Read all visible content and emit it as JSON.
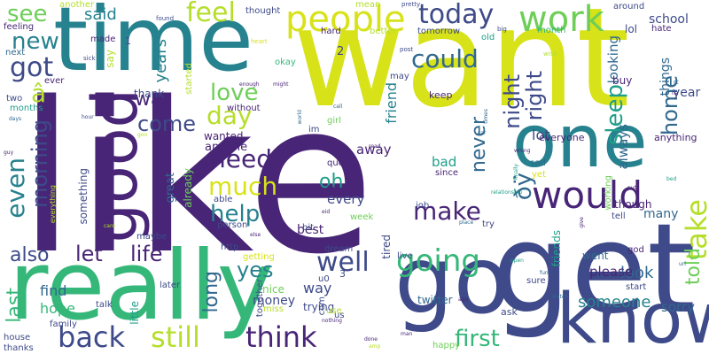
{
  "title": "Word cloud",
  "palette": {
    "dark_purple": "#482576",
    "indigo": "#3e4a89",
    "blue": "#31688e",
    "teal": "#26828e",
    "green_teal": "#1f9e89",
    "green": "#35b779",
    "light_green": "#6ece58",
    "lime": "#b5de2b",
    "yellow": "#d8e219"
  },
  "words": [
    {
      "text": "like",
      "weight": 100,
      "color": "#482576"
    },
    {
      "text": "want",
      "weight": 92,
      "color": "#d8e219"
    },
    {
      "text": "get",
      "weight": 85,
      "color": "#3e4a89"
    },
    {
      "text": "really",
      "weight": 80,
      "color": "#35b779"
    },
    {
      "text": "go",
      "weight": 75,
      "color": "#3e4a89"
    },
    {
      "text": "time",
      "weight": 72,
      "color": "#26828e"
    },
    {
      "text": "know",
      "weight": 65,
      "color": "#3e4a89"
    },
    {
      "text": "one",
      "weight": 60,
      "color": "#26828e"
    },
    {
      "text": "good",
      "weight": 58,
      "color": "#482576"
    },
    {
      "text": "would",
      "weight": 40,
      "color": "#482576"
    },
    {
      "text": "people",
      "weight": 38,
      "color": "#d8e219"
    },
    {
      "text": "work",
      "weight": 36,
      "color": "#6ece58"
    },
    {
      "text": "going",
      "weight": 33,
      "color": "#35b779"
    },
    {
      "text": "think",
      "weight": 32,
      "color": "#482576"
    },
    {
      "text": "still",
      "weight": 32,
      "color": "#b5de2b"
    },
    {
      "text": "back",
      "weight": 31,
      "color": "#3e4a89"
    },
    {
      "text": "today",
      "weight": 30,
      "color": "#3e4a89"
    },
    {
      "text": "got",
      "weight": 30,
      "color": "#3e4a89"
    },
    {
      "text": "well",
      "weight": 30,
      "color": "#3e4a89"
    },
    {
      "text": "take",
      "weight": 29,
      "color": "#b5de2b"
    },
    {
      "text": "feel",
      "weight": 28,
      "color": "#b5de2b"
    },
    {
      "text": "could",
      "weight": 27,
      "color": "#31688e"
    },
    {
      "text": "need",
      "weight": 27,
      "color": "#482576"
    },
    {
      "text": "much",
      "weight": 27,
      "color": "#d8e219"
    },
    {
      "text": "make",
      "weight": 26,
      "color": "#482576"
    },
    {
      "text": "see",
      "weight": 26,
      "color": "#6ece58"
    },
    {
      "text": "even",
      "weight": 26,
      "color": "#26828e"
    },
    {
      "text": "ðÿ",
      "weight": 26,
      "color": "#31688e"
    },
    {
      "text": "new",
      "weight": 26,
      "color": "#26828e"
    },
    {
      "text": "help",
      "weight": 25,
      "color": "#26828e"
    },
    {
      "text": "day",
      "weight": 25,
      "color": "#b5de2b"
    },
    {
      "text": "love",
      "weight": 25,
      "color": "#6ece58"
    },
    {
      "text": "first",
      "weight": 24,
      "color": "#35b779"
    },
    {
      "text": "come",
      "weight": 24,
      "color": "#3e4a89"
    },
    {
      "text": "yes",
      "weight": 24,
      "color": "#26828e"
    },
    {
      "text": "home",
      "weight": 22,
      "color": "#31688e"
    },
    {
      "text": "sleep",
      "weight": 22,
      "color": "#1f9e89"
    },
    {
      "text": "right",
      "weight": 22,
      "color": "#3e4a89"
    },
    {
      "text": "morning",
      "weight": 22,
      "color": "#3e4a89"
    },
    {
      "text": "let",
      "weight": 22,
      "color": "#482576"
    },
    {
      "text": "life",
      "weight": 22,
      "color": "#482576"
    },
    {
      "text": "also",
      "weight": 20,
      "color": "#3e4a89"
    },
    {
      "text": "oh",
      "weight": 20,
      "color": "#1f9e89"
    },
    {
      "text": "night",
      "weight": 20,
      "color": "#3e4a89"
    },
    {
      "text": "last",
      "weight": 19,
      "color": "#35b779"
    },
    {
      "text": "wa",
      "weight": 19,
      "color": "#482576"
    },
    {
      "text": "long",
      "weight": 19,
      "color": "#31688e"
    },
    {
      "text": "never",
      "weight": 18,
      "color": "#31688e"
    },
    {
      "text": "told",
      "weight": 18,
      "color": "#6ece58"
    },
    {
      "text": "said",
      "weight": 18,
      "color": "#26828e"
    },
    {
      "text": "years",
      "weight": 17,
      "color": "#26828e"
    },
    {
      "text": "someone",
      "weight": 17,
      "color": "#26828e"
    },
    {
      "text": "look",
      "weight": 16,
      "color": "#31688e"
    },
    {
      "text": "â",
      "weight": 16,
      "color": "#b5de2b"
    },
    {
      "text": "lot",
      "weight": 15,
      "color": "#3e4a89"
    },
    {
      "text": "friend",
      "weight": 15,
      "color": "#26828e"
    },
    {
      "text": "always",
      "weight": 15,
      "color": "#31688e"
    },
    {
      "text": "way",
      "weight": 15,
      "color": "#3e4a89"
    },
    {
      "text": "looking",
      "weight": 15,
      "color": "#31688e"
    },
    {
      "text": "sorry",
      "weight": 14,
      "color": "#31688e"
    },
    {
      "text": "hope",
      "weight": 14,
      "color": "#35b779"
    },
    {
      "text": "find",
      "weight": 14,
      "color": "#31688e"
    },
    {
      "text": "things",
      "weight": 14,
      "color": "#31688e"
    },
    {
      "text": "every",
      "weight": 14,
      "color": "#3e4a89"
    },
    {
      "text": "away",
      "weight": 14,
      "color": "#482576"
    },
    {
      "text": "bad",
      "weight": 14,
      "color": "#1f9e89"
    },
    {
      "text": "please",
      "weight": 14,
      "color": "#482576"
    },
    {
      "text": "year",
      "weight": 14,
      "color": "#3e4a89"
    },
    {
      "text": "many",
      "weight": 14,
      "color": "#31688e"
    },
    {
      "text": "money",
      "weight": 14,
      "color": "#3e4a89"
    },
    {
      "text": "best",
      "weight": 14,
      "color": "#482576"
    },
    {
      "text": "school",
      "weight": 13,
      "color": "#3e4a89"
    },
    {
      "text": "wanted",
      "weight": 12,
      "color": "#482576"
    },
    {
      "text": "anyone",
      "weight": 12,
      "color": "#482576"
    },
    {
      "text": "something",
      "weight": 12,
      "color": "#3e4a89"
    },
    {
      "text": "thank",
      "weight": 12,
      "color": "#3e4a89"
    },
    {
      "text": "tired",
      "weight": 12,
      "color": "#3e4a89"
    },
    {
      "text": "though",
      "weight": 12,
      "color": "#482576"
    },
    {
      "text": "great",
      "weight": 12,
      "color": "#31688e"
    },
    {
      "text": "trying",
      "weight": 12,
      "color": "#3e4a89"
    },
    {
      "text": "friends",
      "weight": 12,
      "color": "#1f9e89"
    },
    {
      "text": "little",
      "weight": 12,
      "color": "#1f9e89"
    },
    {
      "text": "already",
      "weight": 12,
      "color": "#6ece58"
    },
    {
      "text": "twitter",
      "weight": 12,
      "color": "#31688e"
    },
    {
      "text": "nice",
      "weight": 12,
      "color": "#6ece58"
    },
    {
      "text": "went",
      "weight": 11,
      "color": "#31688e"
    },
    {
      "text": "buy",
      "weight": 11,
      "color": "#482576"
    },
    {
      "text": "lol",
      "weight": 11,
      "color": "#3e4a89"
    },
    {
      "text": "everyone",
      "weight": 10,
      "color": "#482576"
    },
    {
      "text": "anything",
      "weight": 10,
      "color": "#482576"
    },
    {
      "text": "keep",
      "weight": 10,
      "color": "#482576"
    },
    {
      "text": "thing",
      "weight": 10,
      "color": "#482576"
    },
    {
      "text": "working",
      "weight": 10,
      "color": "#6ece58"
    },
    {
      "text": "ask",
      "weight": 10,
      "color": "#3e4a89"
    },
    {
      "text": "hard",
      "weight": 10,
      "color": "#482576"
    },
    {
      "text": "made",
      "weight": 10,
      "color": "#482576"
    },
    {
      "text": "feeling",
      "weight": 10,
      "color": "#482576"
    },
    {
      "text": "say",
      "weight": 10,
      "color": "#b5de2b"
    },
    {
      "text": "mean",
      "weight": 10,
      "color": "#b5de2b"
    },
    {
      "text": "around",
      "weight": 10,
      "color": "#3e4a89"
    },
    {
      "text": "family",
      "weight": 10,
      "color": "#3e4a89"
    },
    {
      "text": "house",
      "weight": 10,
      "color": "#3e4a89"
    },
    {
      "text": "thanks",
      "weight": 10,
      "color": "#3e4a89"
    },
    {
      "text": "talk",
      "weight": 10,
      "color": "#3e4a89"
    },
    {
      "text": "happy",
      "weight": 9,
      "color": "#6ece58"
    },
    {
      "text": "quot",
      "weight": 9,
      "color": "#482576"
    },
    {
      "text": "month",
      "weight": 9,
      "color": "#35b779"
    },
    {
      "text": "hate",
      "weight": 9,
      "color": "#482576"
    },
    {
      "text": "since",
      "weight": 9,
      "color": "#482576"
    },
    {
      "text": "yet",
      "weight": 9,
      "color": "#d8e219"
    },
    {
      "text": "sad",
      "weight": 9,
      "color": "#31688e"
    },
    {
      "text": "later",
      "weight": 9,
      "color": "#3e4a89"
    },
    {
      "text": "start",
      "weight": 9,
      "color": "#3e4a89"
    },
    {
      "text": "god",
      "weight": 9,
      "color": "#482576"
    },
    {
      "text": "able",
      "weight": 9,
      "color": "#3e4a89"
    },
    {
      "text": "live",
      "weight": 9,
      "color": "#3e4a89"
    },
    {
      "text": "dream",
      "weight": 9,
      "color": "#3e4a89"
    },
    {
      "text": "try",
      "weight": 9,
      "color": "#3e4a89"
    },
    {
      "text": "job",
      "weight": 9,
      "color": "#3e4a89"
    },
    {
      "text": "bit",
      "weight": 9,
      "color": "#3e4a89"
    },
    {
      "text": "girl",
      "weight": 9,
      "color": "#6ece58"
    },
    {
      "text": "week",
      "weight": 8,
      "color": "#6ece58"
    },
    {
      "text": "http",
      "weight": 8,
      "color": "#3e4a89"
    },
    {
      "text": "maybe",
      "weight": 8,
      "color": "#3e4a89"
    },
    {
      "text": "person",
      "weight": 8,
      "color": "#3e4a89"
    },
    {
      "text": "getting",
      "weight": 8,
      "color": "#d8e219"
    },
    {
      "text": "miss",
      "weight": 8,
      "color": "#b5de2b"
    },
    {
      "text": "us",
      "weight": 8,
      "color": "#3e4a89"
    },
    {
      "text": "sure",
      "weight": 8,
      "color": "#3e4a89"
    },
    {
      "text": "tell",
      "weight": 8,
      "color": "#3e4a89"
    },
    {
      "text": "thought",
      "weight": 8,
      "color": "#3e4a89"
    },
    {
      "text": "tomorrow",
      "weight": 8,
      "color": "#3e4a89"
    },
    {
      "text": "better",
      "weight": 8,
      "color": "#b5de2b"
    },
    {
      "text": "started",
      "weight": 8,
      "color": "#b5de2b"
    },
    {
      "text": "another",
      "weight": 8,
      "color": "#b5de2b"
    },
    {
      "text": "next",
      "weight": 8,
      "color": "#31688e"
    },
    {
      "text": "old",
      "weight": 8,
      "color": "#1f9e89"
    },
    {
      "text": "okay",
      "weight": 8,
      "color": "#35b779"
    },
    {
      "text": "may",
      "weight": 8,
      "color": "#3e4a89"
    },
    {
      "text": "two",
      "weight": 8,
      "color": "#3e4a89"
    },
    {
      "text": "months",
      "weight": 8,
      "color": "#1f9e89"
    },
    {
      "text": "ever",
      "weight": 8,
      "color": "#482576"
    },
    {
      "text": "without",
      "weight": 8,
      "color": "#482576"
    },
    {
      "text": "together",
      "weight": 8,
      "color": "#3e4a89"
    },
    {
      "text": "im",
      "weight": 8,
      "color": "#3e4a89"
    },
    {
      "text": "com",
      "weight": 8,
      "color": "#3e4a89"
    },
    {
      "text": "u0",
      "weight": 8,
      "color": "#3e4a89"
    },
    {
      "text": "everything",
      "weight": 6,
      "color": "#b5de2b"
    },
    {
      "text": "use",
      "weight": 6,
      "color": "#b5de2b"
    },
    {
      "text": "1",
      "weight": 10,
      "color": "#3e4a89"
    },
    {
      "text": "2",
      "weight": 10,
      "color": "#3e4a89"
    },
    {
      "text": "3",
      "weight": 10,
      "color": "#3e4a89"
    },
    {
      "text": "pretty",
      "weight": 5,
      "color": "#3e4a89"
    },
    {
      "text": "found",
      "weight": 5,
      "color": "#3e4a89"
    },
    {
      "text": "post",
      "weight": 5,
      "color": "#3e4a89"
    },
    {
      "text": "big",
      "weight": 5,
      "color": "#3e4a89"
    },
    {
      "text": "wish",
      "weight": 5,
      "color": "#b5de2b"
    },
    {
      "text": "sick",
      "weight": 5,
      "color": "#3e4a89"
    },
    {
      "text": "heart",
      "weight": 5,
      "color": "#d8e219"
    },
    {
      "text": "enough",
      "weight": 5,
      "color": "#482576"
    },
    {
      "text": "might",
      "weight": 5,
      "color": "#482576"
    },
    {
      "text": "hour",
      "weight": 5,
      "color": "#3e4a89"
    },
    {
      "text": "days",
      "weight": 5,
      "color": "#31688e"
    },
    {
      "text": "guy",
      "weight": 5,
      "color": "#482576"
    },
    {
      "text": "world",
      "weight": 5,
      "color": "#31688e"
    },
    {
      "text": "call",
      "weight": 5,
      "color": "#31688e"
    },
    {
      "text": "times",
      "weight": 5,
      "color": "#31688e"
    },
    {
      "text": "car",
      "weight": 5,
      "color": "#31688e"
    },
    {
      "text": "wrong",
      "weight": 5,
      "color": "#482576"
    },
    {
      "text": "read",
      "weight": 5,
      "color": "#482576"
    },
    {
      "text": "bed",
      "weight": 5,
      "color": "#1f9e89"
    },
    {
      "text": "put",
      "weight": 5,
      "color": "#482576"
    },
    {
      "text": "finally",
      "weight": 5,
      "color": "#1f9e89"
    },
    {
      "text": "food",
      "weight": 5,
      "color": "#482576"
    },
    {
      "text": "eid",
      "weight": 5,
      "color": "#482576"
    },
    {
      "text": "care",
      "weight": 5,
      "color": "#b5de2b"
    },
    {
      "text": "relationship",
      "weight": 4,
      "color": "#1f9e89"
    },
    {
      "text": "give",
      "weight": 5,
      "color": "#482576"
    },
    {
      "text": "place",
      "weight": 5,
      "color": "#31688e"
    },
    {
      "text": "open",
      "weight": 5,
      "color": "#1f9e89"
    },
    {
      "text": "url",
      "weight": 5,
      "color": "#31688e"
    },
    {
      "text": "fun",
      "weight": 5,
      "color": "#31688e"
    },
    {
      "text": "watch",
      "weight": 5,
      "color": "#31688e"
    },
    {
      "text": "ago",
      "weight": 5,
      "color": "#482576"
    },
    {
      "text": "done",
      "weight": 5,
      "color": "#482576"
    },
    {
      "text": "man",
      "weight": 5,
      "color": "#482576"
    },
    {
      "text": "nothing",
      "weight": 5,
      "color": "#482576"
    },
    {
      "text": "else",
      "weight": 5,
      "color": "#482576"
    },
    {
      "text": "amp",
      "weight": 5,
      "color": "#b5de2b"
    },
    {
      "text": "na",
      "weight": 5,
      "color": "#482576"
    },
    {
      "text": "rt",
      "weight": 5,
      "color": "#31688e"
    },
    {
      "text": "goo",
      "weight": 5,
      "color": "#b5de2b"
    }
  ]
}
